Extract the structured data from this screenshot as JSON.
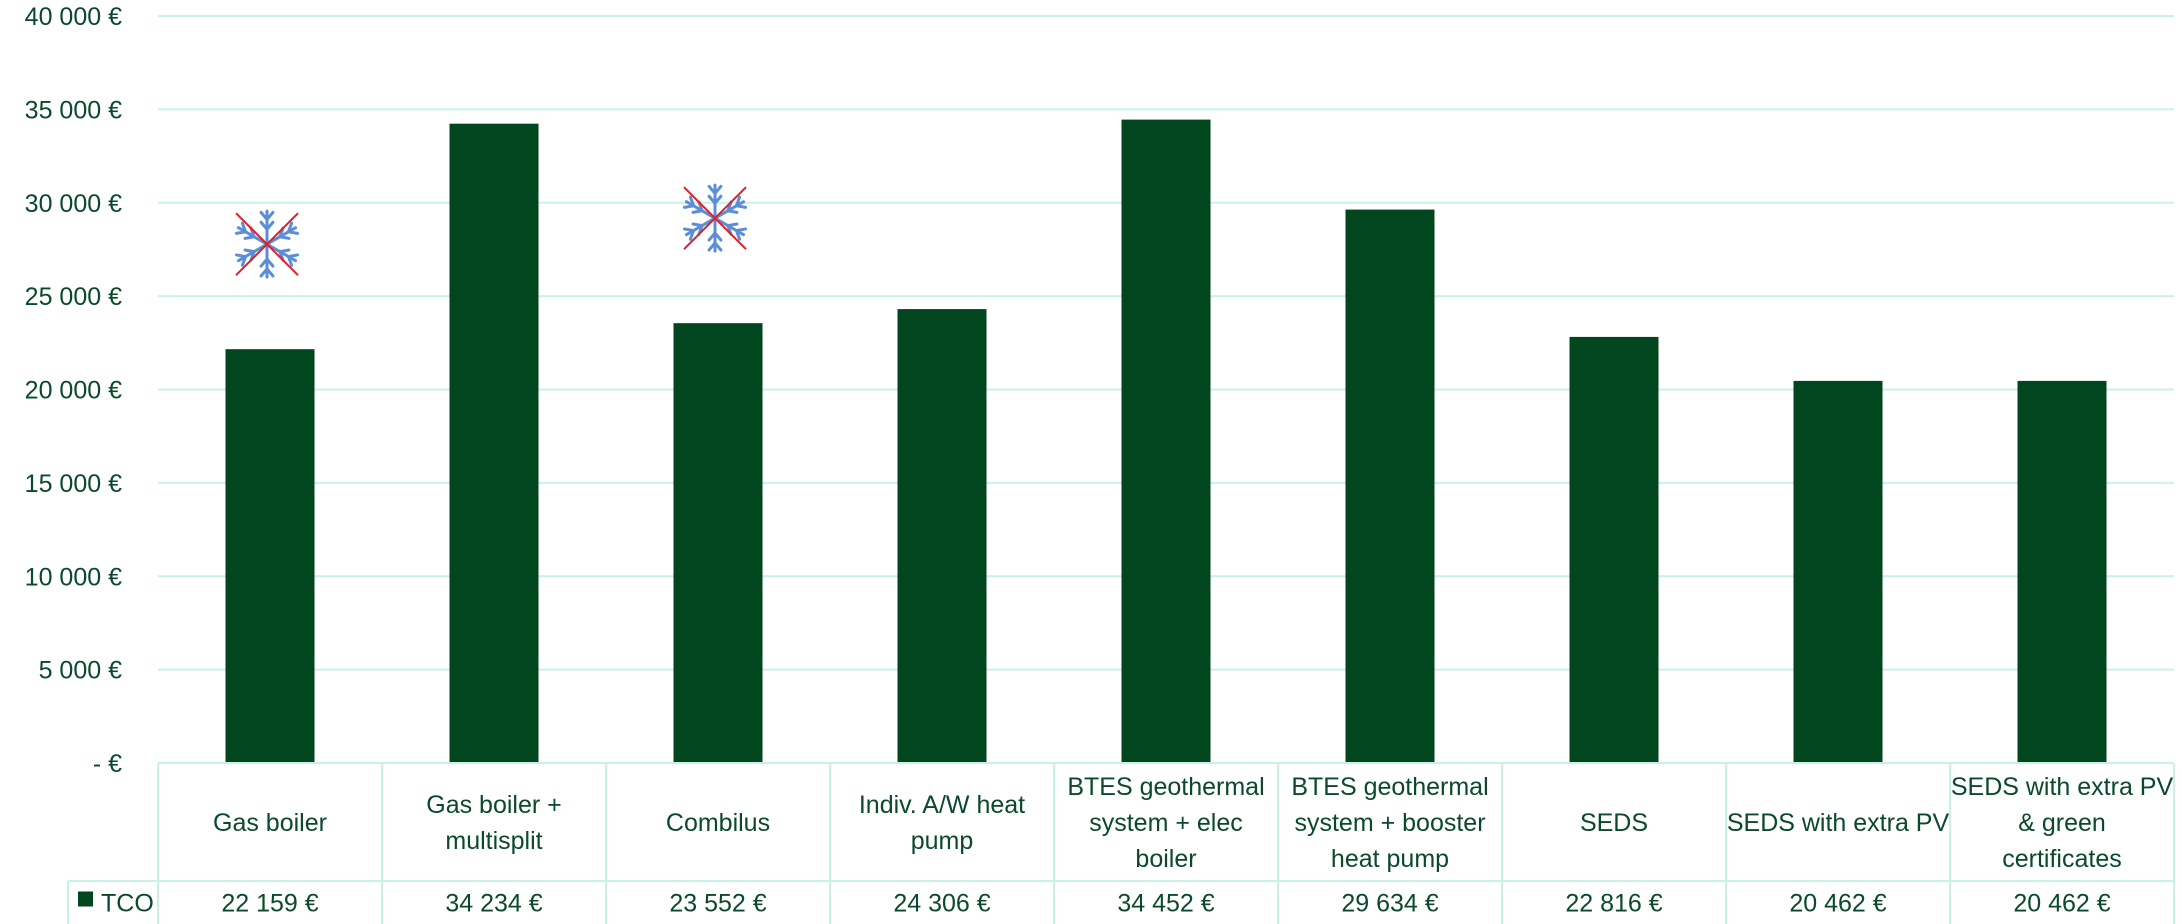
{
  "chart_data": {
    "type": "bar",
    "categories": [
      "Gas boiler",
      "Gas boiler + multisplit",
      "Combilus",
      "Indiv. A/W heat pump",
      "BTES geothermal system + elec boiler",
      "BTES geothermal system + booster heat pump",
      "SEDS",
      "SEDS with extra PV",
      "SEDS with extra PV & green certificates"
    ],
    "series": [
      {
        "name": "TCO",
        "values": [
          22159,
          34234,
          23552,
          24306,
          34452,
          29634,
          22816,
          20462,
          20462
        ]
      }
    ],
    "ylim": [
      0,
      40000
    ],
    "ytick_labels": [
      "-   €",
      "5 000 €",
      "10 000 €",
      "15 000 €",
      "20 000 €",
      "25 000 €",
      "30 000 €",
      "35 000 €",
      "40 000 €"
    ],
    "table_values": [
      "22 159 €",
      "34 234 €",
      "23 552 €",
      "24 306 €",
      "34 452 €",
      "29 634 €",
      "22 816 €",
      "20 462 €",
      "20 462 €"
    ],
    "grid": true,
    "legend": "data-table"
  },
  "annotations": [
    {
      "category": "Gas boiler",
      "icon": "no-cooling-icon"
    },
    {
      "category": "Combilus",
      "icon": "no-cooling-icon"
    }
  ],
  "colors": {
    "bar": "#02461f",
    "grid": "#c8f2e6",
    "text": "#0a4a2a",
    "cross": "#e0202a",
    "snowflake": "#5b8ed6"
  }
}
